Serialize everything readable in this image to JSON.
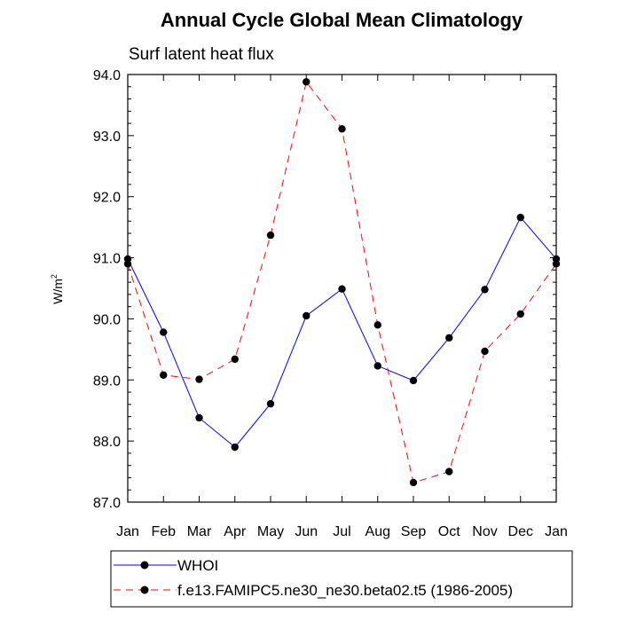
{
  "chart_data": {
    "type": "line",
    "title": "Annual Cycle Global Mean Climatology",
    "subtitle": "Surf latent heat flux",
    "ylabel": "W/m",
    "ylabel_sup": "2",
    "xlabel": "",
    "ylim": [
      87.0,
      94.0
    ],
    "yticks": [
      "87.0",
      "88.0",
      "89.0",
      "90.0",
      "91.0",
      "92.0",
      "93.0",
      "94.0"
    ],
    "categories": [
      "Jan",
      "Feb",
      "Mar",
      "Apr",
      "May",
      "Jun",
      "Jul",
      "Aug",
      "Sep",
      "Oct",
      "Nov",
      "Dec",
      "Jan"
    ],
    "grid": false,
    "legend_position": "bottom",
    "series": [
      {
        "name": "WHOI",
        "color": "#0000ff",
        "dash": "solid",
        "values": [
          90.98,
          89.78,
          88.38,
          87.9,
          88.61,
          90.05,
          90.49,
          89.23,
          88.99,
          89.69,
          90.48,
          91.66,
          90.98
        ]
      },
      {
        "name": "f.e13.FAMIPC5.ne30_ne30.beta02.t5 (1986-2005)",
        "color": "#ff0000",
        "dash": "dashed",
        "values": [
          90.9,
          89.08,
          89.01,
          89.34,
          91.37,
          93.88,
          93.11,
          89.9,
          87.32,
          87.5,
          89.47,
          90.08,
          90.9
        ]
      }
    ]
  }
}
